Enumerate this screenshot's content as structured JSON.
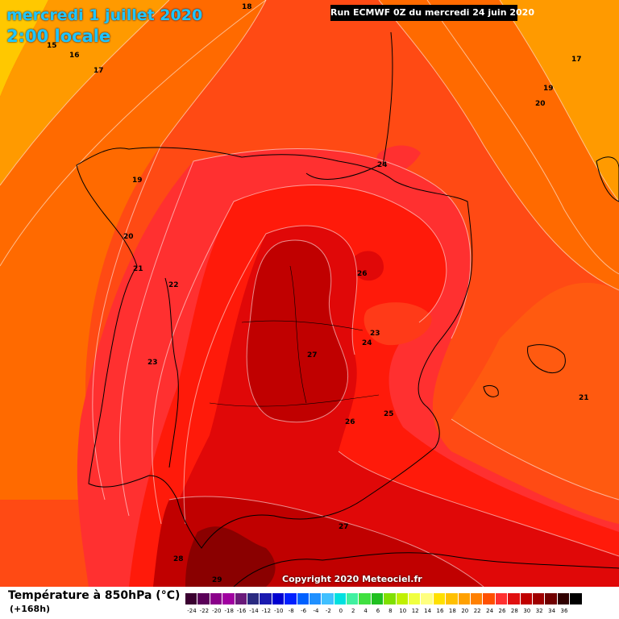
{
  "header": {
    "date": "mercredi 1 juillet 2020",
    "time": "2:00 locale",
    "run": "Run ECMWF 0Z du mercredi 24 juin 2020"
  },
  "copyright": "Copyright 2020 Meteociel.fr",
  "legend": {
    "title": "Température à 850hPa (°C)",
    "subtitle": "(+168h)",
    "ticks": [
      "-24",
      "-22",
      "-20",
      "-18",
      "-16",
      "-14",
      "-12",
      "-10",
      "-8",
      "-6",
      "-4",
      "-2",
      "0",
      "2",
      "4",
      "6",
      "8",
      "10",
      "12",
      "14",
      "16",
      "18",
      "20",
      "22",
      "24",
      "26",
      "28",
      "30",
      "32",
      "34",
      "36"
    ],
    "colors": [
      "#3a0030",
      "#5a0058",
      "#8a008a",
      "#a000a0",
      "#6a1a7a",
      "#2a2a80",
      "#1a1ab0",
      "#0000d0",
      "#0020ff",
      "#0060ff",
      "#2090ff",
      "#40c0ff",
      "#00e0e0",
      "#40f0a0",
      "#40e040",
      "#20c020",
      "#80e000",
      "#c0f000",
      "#f0ff40",
      "#ffff80",
      "#ffe000",
      "#ffc000",
      "#ffa000",
      "#ff8000",
      "#ff5000",
      "#ff3030",
      "#e01010",
      "#c00000",
      "#a00000",
      "#700000",
      "#300000",
      "#000000"
    ]
  },
  "isotherms": [
    {
      "label": "18"
    },
    {
      "label": "15"
    },
    {
      "label": "16"
    },
    {
      "label": "17"
    },
    {
      "label": "17"
    },
    {
      "label": "19"
    },
    {
      "label": "20"
    },
    {
      "label": "19"
    },
    {
      "label": "20"
    },
    {
      "label": "21"
    },
    {
      "label": "22"
    },
    {
      "label": "23"
    },
    {
      "label": "24"
    },
    {
      "label": "26"
    },
    {
      "label": "27"
    },
    {
      "label": "23"
    },
    {
      "label": "24"
    },
    {
      "label": "26"
    },
    {
      "label": "25"
    },
    {
      "label": "21"
    },
    {
      "label": "27"
    },
    {
      "label": "28"
    },
    {
      "label": "29"
    }
  ]
}
